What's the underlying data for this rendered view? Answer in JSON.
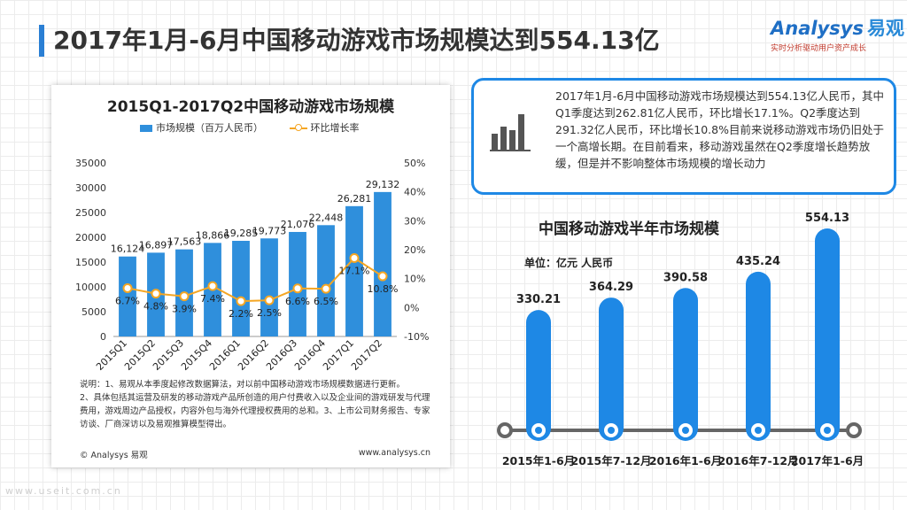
{
  "page": {
    "title": "2017年1月-6月中国移动游戏市场规模达到554.13亿"
  },
  "logo": {
    "brand": "Analysys",
    "brand_cn": "易观",
    "tagline": "实时分析驱动用户资产成长"
  },
  "chart_data": [
    {
      "type": "bar",
      "title": "2015Q1-2017Q2中国移动游戏市场规模",
      "categories": [
        "2015Q1",
        "2015Q2",
        "2015Q3",
        "2015Q4",
        "2016Q1",
        "2016Q2",
        "2016Q3",
        "2016Q4",
        "2017Q1",
        "2017Q2"
      ],
      "series": [
        {
          "name": "市场规模（百万人民币）",
          "type": "bar",
          "axis": "left",
          "values": [
            16124,
            16897,
            17563,
            18866,
            19285,
            19773,
            21076,
            22448,
            26281,
            29132
          ],
          "labels": [
            "16,124",
            "16,897",
            "17,563",
            "18,866",
            "19,285",
            "19,773",
            "21,076",
            "22,448",
            "26,281",
            "29,132"
          ]
        },
        {
          "name": "环比增长率",
          "type": "line",
          "axis": "right",
          "values": [
            6.7,
            4.8,
            3.9,
            7.4,
            2.2,
            2.5,
            6.6,
            6.5,
            17.1,
            10.8
          ],
          "labels": [
            "6.7%",
            "4.8%",
            "3.9%",
            "7.4%",
            "2.2%",
            "2.5%",
            "6.6%",
            "6.5%",
            "17.1%",
            "10.8%"
          ]
        }
      ],
      "ylim": [
        0,
        35000
      ],
      "yticks": [
        "35000",
        "30000",
        "25000",
        "20000",
        "15000",
        "10000",
        "5000",
        "0"
      ],
      "y2lim": [
        -10,
        50
      ],
      "y2ticks": [
        "50%",
        "40%",
        "30%",
        "20%",
        "10%",
        "0%",
        "-10%"
      ],
      "colors": {
        "bar": "#2f8fdc",
        "line": "#f5a623"
      }
    },
    {
      "type": "bar",
      "title": "中国移动游戏半年市场规模",
      "unit_label": "单位：亿元 人民币",
      "categories": [
        "2015年1-6月",
        "2015年7-12月",
        "2016年1-6月",
        "2016年7-12月",
        "2017年1-6月"
      ],
      "values": [
        330.21,
        364.29,
        390.58,
        435.24,
        554.13
      ],
      "labels": [
        "330.21",
        "364.29",
        "390.58",
        "435.24",
        "554.13"
      ],
      "colors": {
        "bar": "#1e88e5",
        "axis": "#666666"
      }
    }
  ],
  "notes": {
    "line1": "说明：1、易观从本季度起修改数据算法，对以前中国移动游戏市场规模数据进行更新。",
    "line2": "2、具体包括其运营及研发的移动游戏产品所创造的用户付费收入以及企业间的游戏研发与代理费用，游戏周边产品授权，内容外包与海外代理授权费用的总和。3、上市公司财务报告、专家访谈、厂商深访以及易观推算模型得出。",
    "copyright": "© Analysys 易观",
    "website": "www.analysys.cn"
  },
  "description": {
    "text": "2017年1月-6月中国移动游戏市场规模达到554.13亿人民币，其中Q1季度达到262.81亿人民币，环比增长17.1%。Q2季度达到291.32亿人民币，环比增长10.8%目前来说移动游戏市场仍旧处于一个高增长期。在目前看来，移动游戏虽然在Q2季度增长趋势放缓，但是并不影响整体市场规模的增长动力"
  },
  "watermark": "www.useit.com.cn"
}
